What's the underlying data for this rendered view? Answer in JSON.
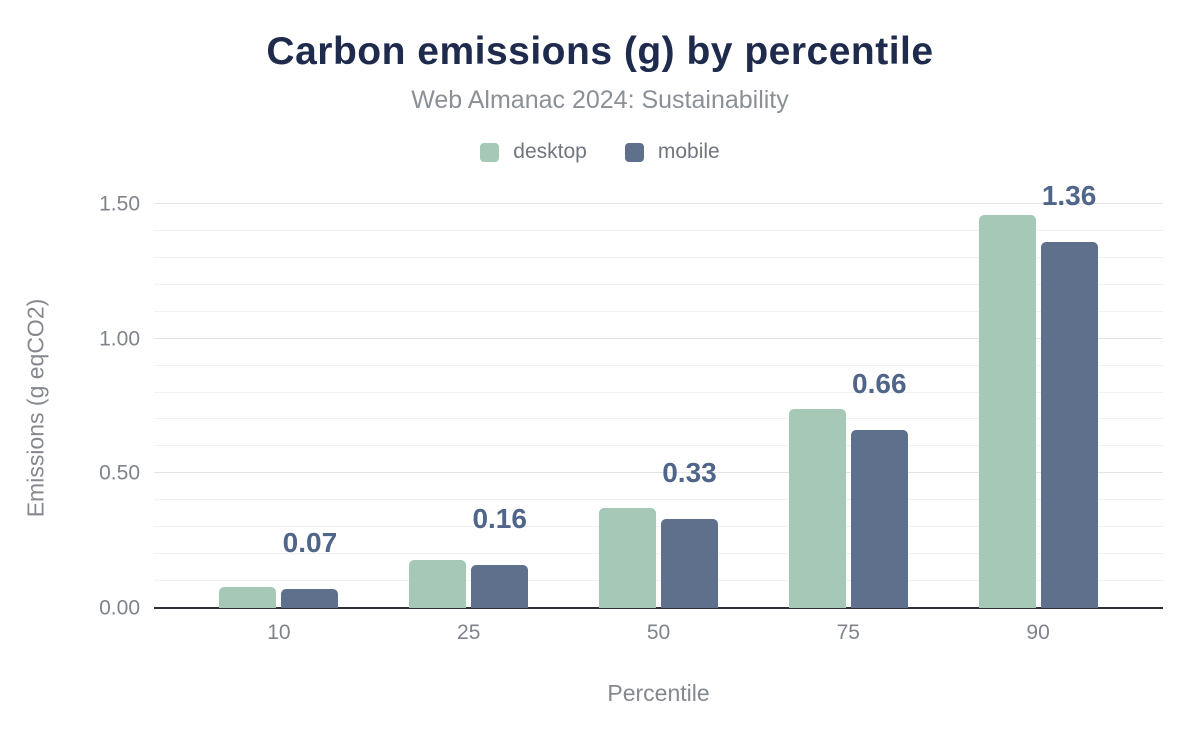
{
  "header": {
    "title": "Carbon emissions (g) by percentile",
    "subtitle": "Web Almanac 2024: Sustainability"
  },
  "legend": [
    {
      "label": "desktop",
      "color": "#a6c8b6"
    },
    {
      "label": "mobile",
      "color": "#5f708c"
    }
  ],
  "colors": {
    "desktop_bar": "#a6c8b6",
    "mobile_bar": "#5f708c",
    "value_label": "#50658a",
    "title_text": "#1f2b4d",
    "muted_text": "#8b9096",
    "tick_text": "#7f848c",
    "grid_minor": "#f0f1f3",
    "grid_major": "#e2e4e7",
    "axis_line": "#2d3237"
  },
  "chart_data": {
    "type": "bar",
    "title": "Carbon emissions (g) by percentile",
    "subtitle": "Web Almanac 2024: Sustainability",
    "categories": [
      "10",
      "25",
      "50",
      "75",
      "90"
    ],
    "series": [
      {
        "name": "desktop",
        "color": "#a6c8b6",
        "values": [
          0.08,
          0.18,
          0.37,
          0.74,
          1.46
        ]
      },
      {
        "name": "mobile",
        "color": "#5f708c",
        "values": [
          0.07,
          0.16,
          0.33,
          0.66,
          1.36
        ]
      }
    ],
    "bar_labels": {
      "series": "mobile",
      "values": [
        "0.07",
        "0.16",
        "0.33",
        "0.66",
        "1.36"
      ]
    },
    "xlabel": "Percentile",
    "ylabel": "Emissions (g eqCO2)",
    "y_ticks": [
      {
        "value": 0.0,
        "label": "0.00"
      },
      {
        "value": 0.5,
        "label": "0.50"
      },
      {
        "value": 1.0,
        "label": "1.00"
      },
      {
        "value": 1.5,
        "label": "1.50"
      }
    ],
    "ylim": [
      0,
      1.545
    ],
    "grid": {
      "major_step": 0.5,
      "minor_step": 0.1,
      "grid_on": true
    },
    "legend_position": "top"
  }
}
